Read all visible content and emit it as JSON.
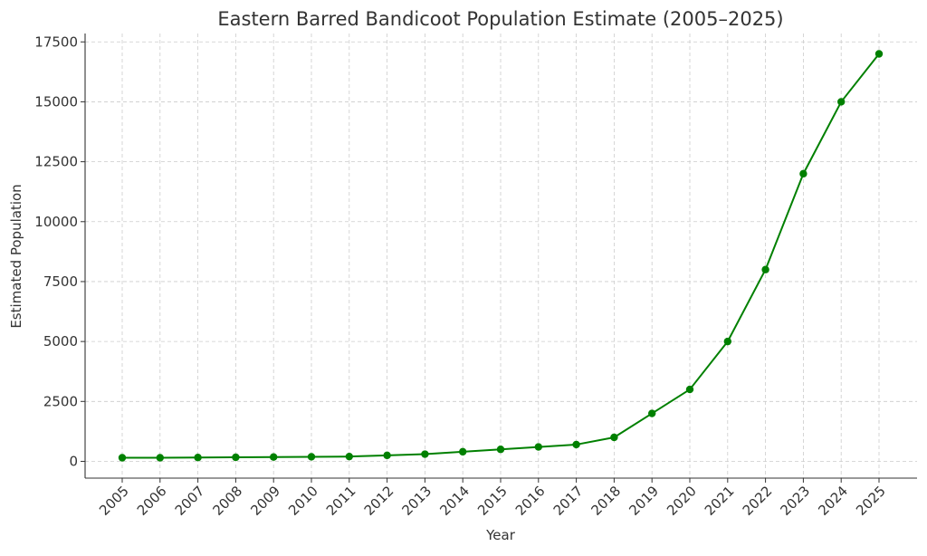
{
  "chart_data": {
    "type": "line",
    "title": "Eastern Barred Bandicoot Population Estimate (2005–2025)",
    "xlabel": "Year",
    "ylabel": "Estimated Population",
    "x": [
      "2005",
      "2006",
      "2007",
      "2008",
      "2009",
      "2010",
      "2011",
      "2012",
      "2013",
      "2014",
      "2015",
      "2016",
      "2017",
      "2018",
      "2019",
      "2020",
      "2021",
      "2022",
      "2023",
      "2024",
      "2025"
    ],
    "series": [
      {
        "values": [
          150,
          150,
          160,
          170,
          180,
          190,
          200,
          250,
          300,
          400,
          500,
          600,
          700,
          1000,
          2000,
          3000,
          5000,
          8000,
          12000,
          15000,
          17000
        ]
      }
    ],
    "yticks": [
      0,
      2500,
      5000,
      7500,
      10000,
      12500,
      15000,
      17500
    ],
    "ylim": [
      -700,
      17850
    ],
    "grid": true,
    "line_color": "#008000",
    "marker": "circle"
  }
}
